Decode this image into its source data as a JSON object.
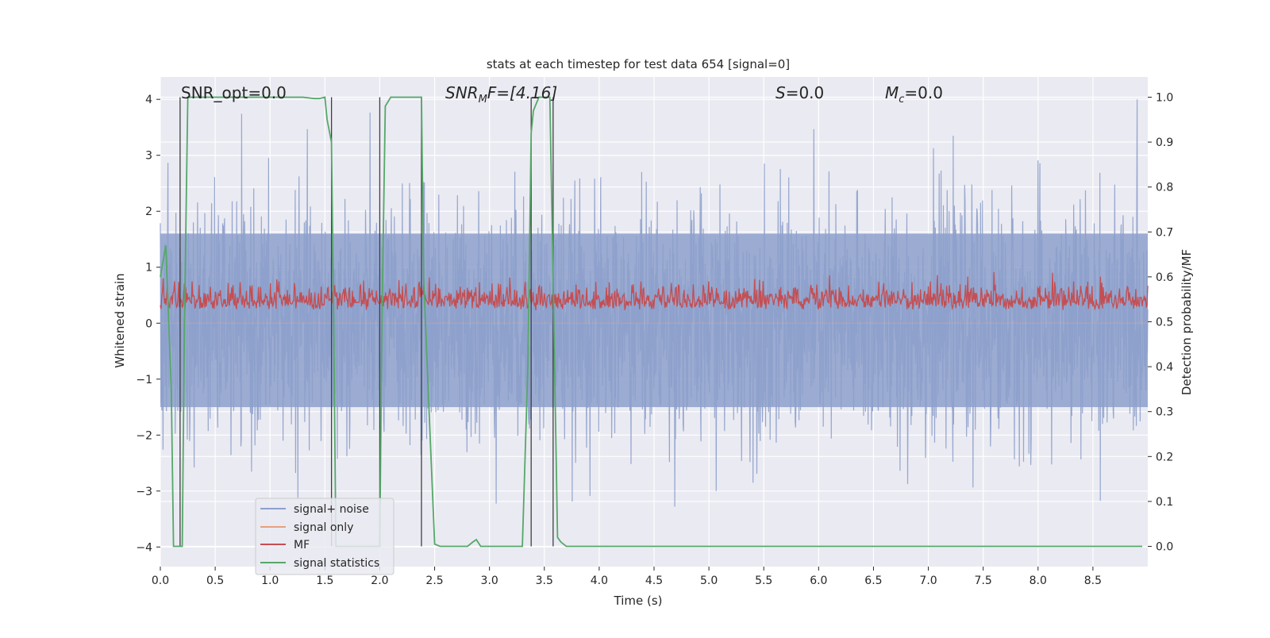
{
  "chart_data": {
    "type": "line",
    "title": "stats at each timestep for test data 654 [signal=0]",
    "xlabel": "Time (s)",
    "ylabel": "Whitened strain",
    "y2label": "Detection probability/MF",
    "xlim": [
      0.0,
      9.0
    ],
    "ylim": [
      -4.35,
      4.4
    ],
    "y2lim": [
      -0.045,
      1.045
    ],
    "xticks": [
      0.0,
      0.5,
      1.0,
      1.5,
      2.0,
      2.5,
      3.0,
      3.5,
      4.0,
      4.5,
      5.0,
      5.5,
      6.0,
      6.5,
      7.0,
      7.5,
      8.0,
      8.5
    ],
    "yticks": [
      -4,
      -3,
      -2,
      -1,
      0,
      1,
      2,
      3,
      4
    ],
    "y2ticks": [
      0.0,
      0.1,
      0.2,
      0.3,
      0.4,
      0.5,
      0.6,
      0.7,
      0.8,
      0.9,
      1.0
    ],
    "xtick_labels": [
      "0.0",
      "0.5",
      "1.0",
      "1.5",
      "2.0",
      "2.5",
      "3.0",
      "3.5",
      "4.0",
      "4.5",
      "5.0",
      "5.5",
      "6.0",
      "6.5",
      "7.0",
      "7.5",
      "8.0",
      "8.5"
    ],
    "ytick_labels": [
      "−4",
      "−3",
      "−2",
      "−1",
      "0",
      "1",
      "2",
      "3",
      "4"
    ],
    "y2tick_labels": [
      "0.0",
      "0.1",
      "0.2",
      "0.3",
      "0.4",
      "0.5",
      "0.6",
      "0.7",
      "0.8",
      "0.9",
      "1.0"
    ],
    "grid": true,
    "legend_position": "bottom-left",
    "annotations": {
      "snr_opt": "SNR_opt=0.0",
      "snr_mf_main": "SNR",
      "snr_mf_sub": "M",
      "snr_mf_rest": "F=[4.16]",
      "s_var": "S",
      "s_rest": "=0.0",
      "mc_var": "M",
      "mc_sub": "c",
      "mc_rest": "=0.0"
    },
    "series": [
      {
        "name": "signal+ noise",
        "color": "#8da0cb",
        "axis": "left",
        "description_range": [
          -4.0,
          4.0
        ]
      },
      {
        "name": "signal only",
        "color": "#e8a07d",
        "axis": "left",
        "values_constant": 0.0
      },
      {
        "name": "MF",
        "color": "#c44e52",
        "axis": "right",
        "range": [
          0.5,
          0.62
        ]
      },
      {
        "name": "signal statistics",
        "color": "#55a868",
        "axis": "right",
        "x": [
          0.0,
          0.05,
          0.1,
          0.12,
          0.18,
          0.2,
          0.22,
          0.25,
          0.28,
          0.35,
          0.5,
          0.8,
          1.0,
          1.2,
          1.3,
          1.4,
          1.45,
          1.5,
          1.52,
          1.56,
          1.58,
          1.6,
          1.62,
          1.7,
          1.9,
          2.0,
          2.02,
          2.05,
          2.1,
          2.2,
          2.3,
          2.38,
          2.4,
          2.45,
          2.5,
          2.55,
          2.6,
          2.7,
          2.8,
          2.85,
          2.88,
          2.92,
          3.0,
          3.1,
          3.2,
          3.3,
          3.35,
          3.38,
          3.4,
          3.45,
          3.5,
          3.55,
          3.58,
          3.62,
          3.65,
          3.7,
          3.8,
          4.0,
          5.0,
          6.0,
          7.0,
          8.0,
          8.95
        ],
        "y": [
          0.6,
          0.67,
          0.35,
          0.0,
          0.0,
          0.0,
          0.5,
          1.0,
          1.0,
          1.0,
          1.0,
          1.0,
          1.0,
          1.0,
          1.0,
          0.997,
          0.997,
          1.0,
          0.95,
          0.9,
          0.5,
          0.0,
          0.0,
          0.0,
          0.0,
          0.0,
          0.5,
          0.98,
          1.0,
          1.0,
          1.0,
          1.0,
          0.6,
          0.3,
          0.005,
          0.0,
          0.0,
          0.0,
          0.0,
          0.01,
          0.015,
          0.0,
          0.0,
          0.0,
          0.0,
          0.0,
          0.4,
          0.92,
          0.97,
          1.0,
          1.0,
          1.0,
          0.6,
          0.02,
          0.01,
          0.0,
          0.0,
          0.0,
          0.0,
          0.0,
          0.0,
          0.0,
          0.0
        ]
      }
    ],
    "vertical_markers_x": [
      0.18,
      1.56,
      2.0,
      2.38,
      3.38,
      3.58
    ]
  }
}
